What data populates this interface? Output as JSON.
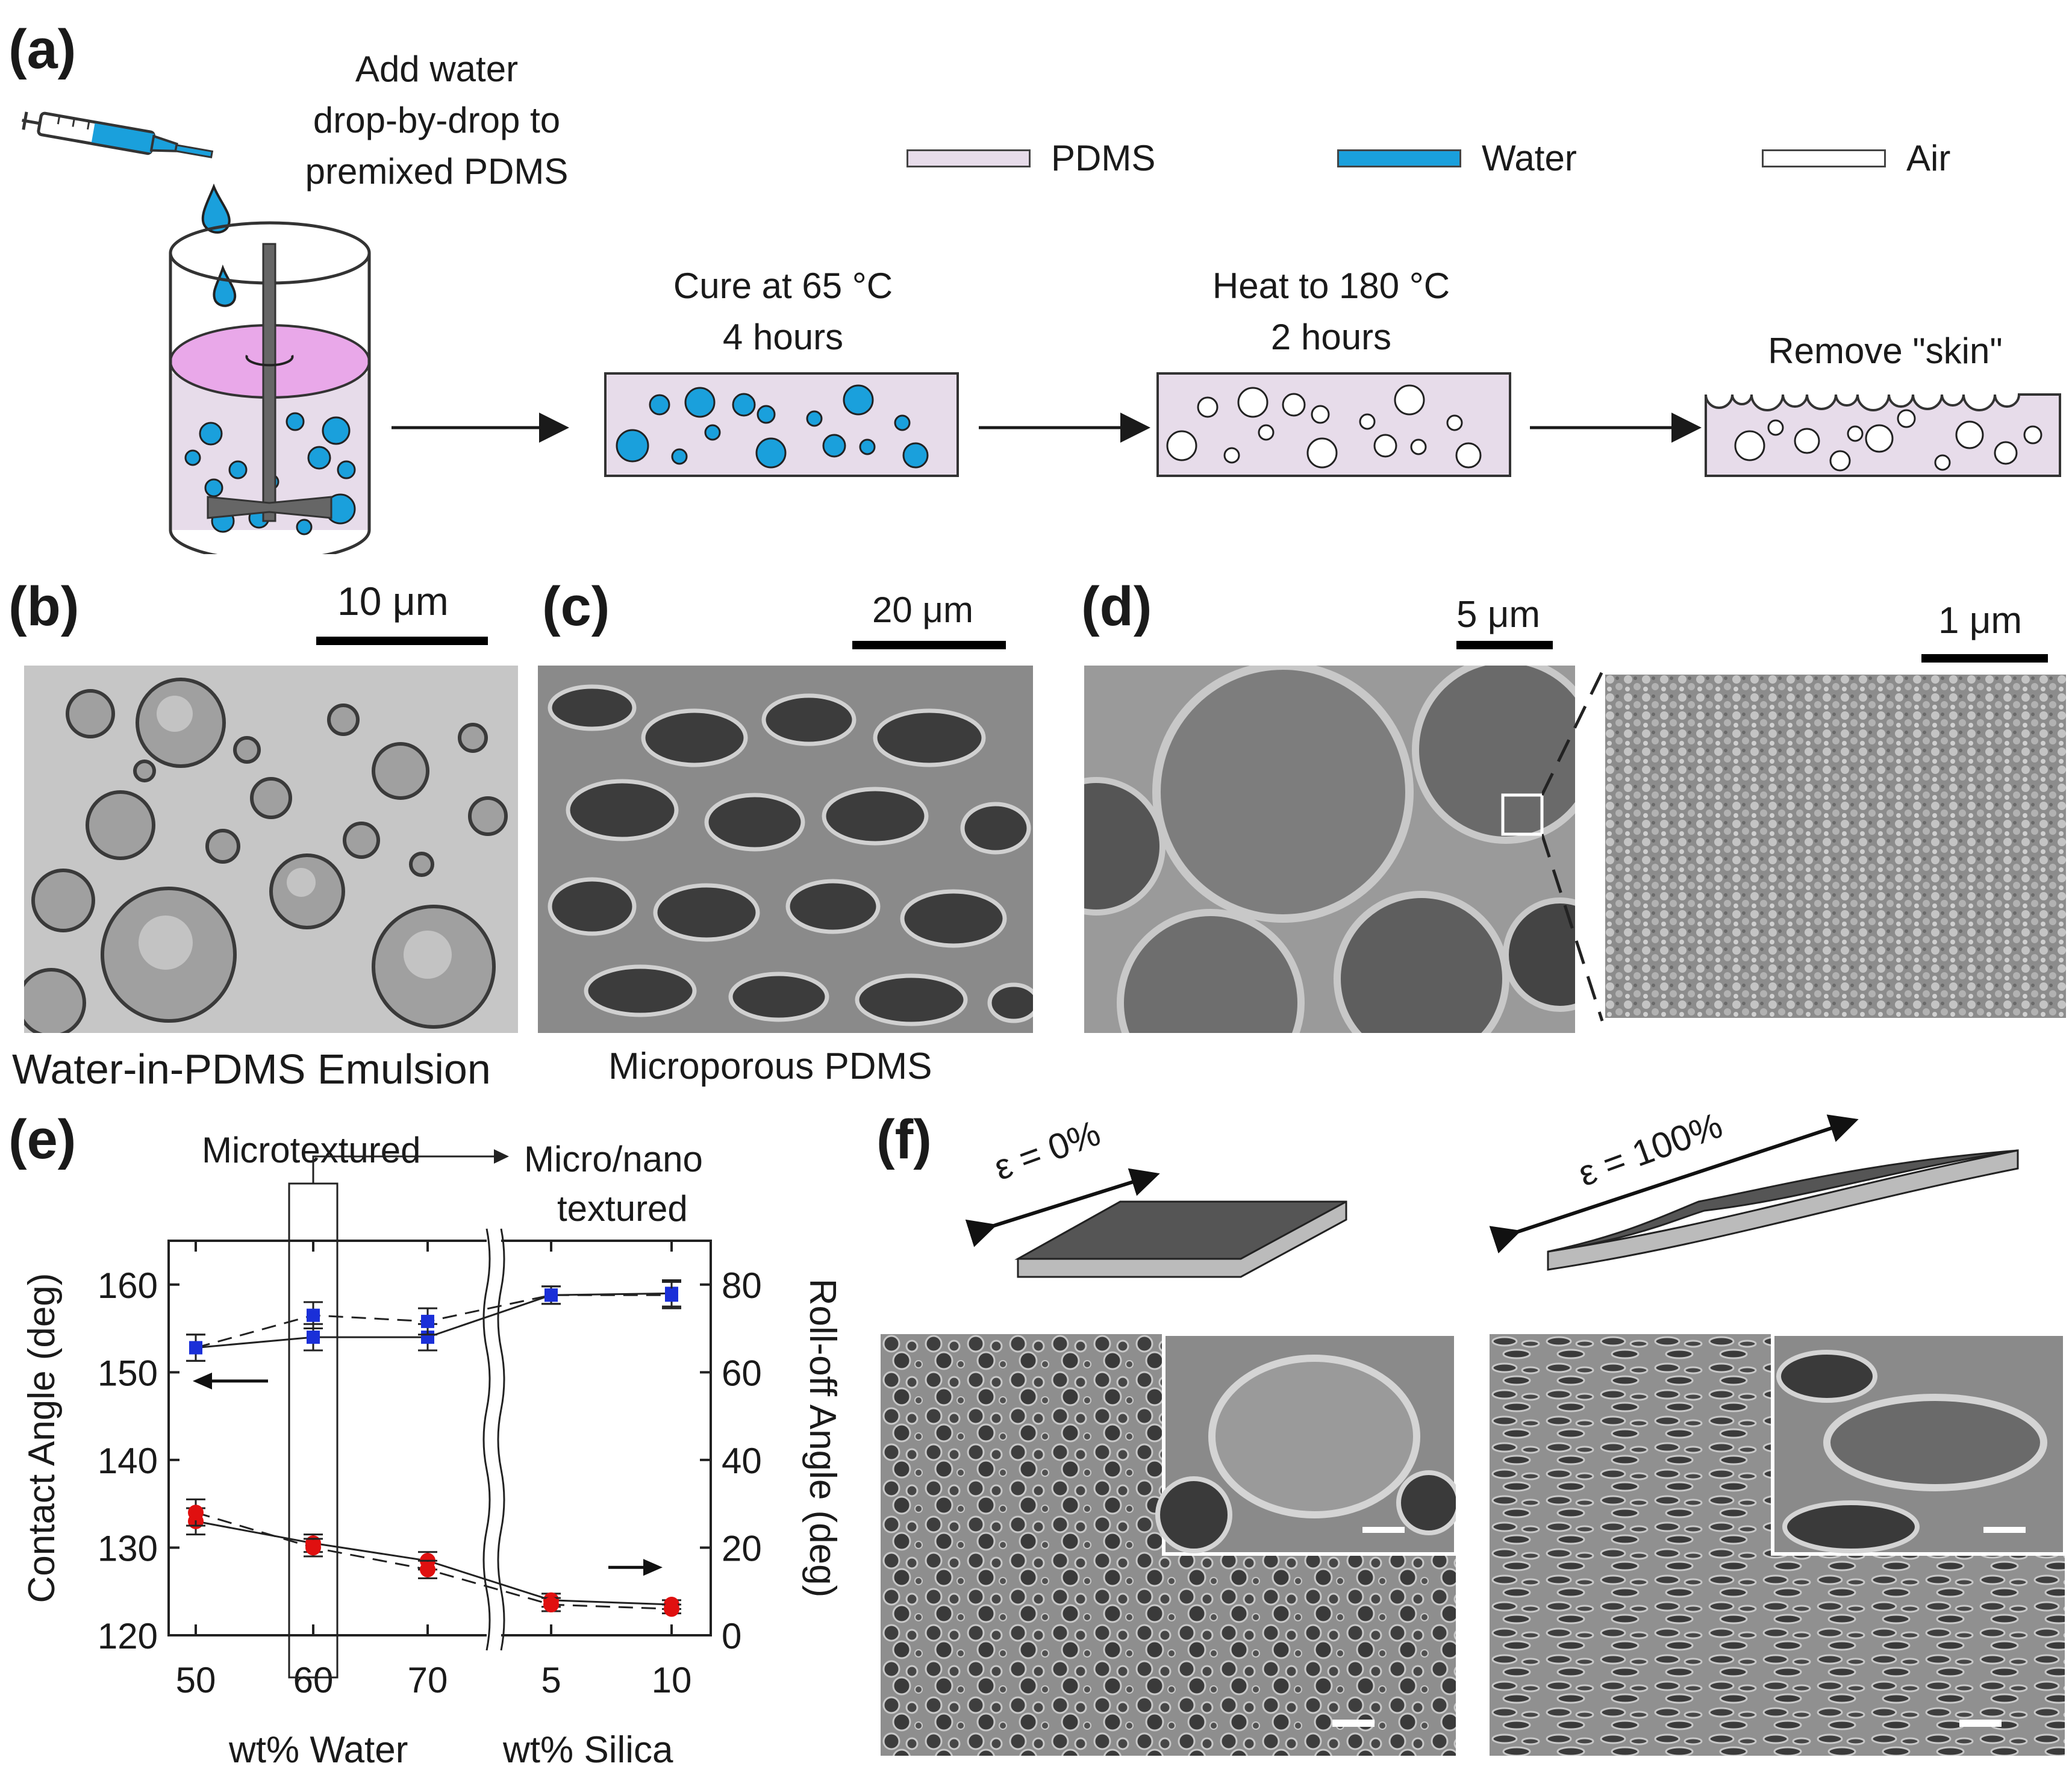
{
  "panels": {
    "a": "(a)",
    "b": "(b)",
    "c": "(c)",
    "d": "(d)",
    "e": "(e)",
    "f": "(f)"
  },
  "schematic": {
    "step1": [
      "Add water",
      "drop-by-drop to",
      "premixed PDMS"
    ],
    "step2": [
      "Cure at 65 °C",
      "4 hours"
    ],
    "step3": [
      "Heat to 180 °C",
      "2 hours"
    ],
    "step4": "Remove \"skin\"",
    "legend": [
      {
        "label": "PDMS",
        "color": "#e7dcea"
      },
      {
        "label": "Water",
        "color": "#1aa0dc"
      },
      {
        "label": "Air",
        "color": "#ffffff"
      }
    ]
  },
  "micrographs": {
    "b_scale": "10 μm",
    "b_caption": "Water-in-PDMS Emulsion",
    "c_scale": "20 μm",
    "c_caption": "Microporous PDMS",
    "d_scale_left": "5 μm",
    "d_scale_right": "1 μm"
  },
  "strain": {
    "left": "ε = 0%",
    "right": "ε = 100%"
  },
  "chart_data": {
    "type": "line",
    "categories": [
      "50",
      "60",
      "70",
      "5",
      "10"
    ],
    "group_labels": [
      "wt% Water",
      "wt% Silica"
    ],
    "annotations": [
      "Microtextured",
      "Micro/nano",
      "textured"
    ],
    "ylabel": "Contact Angle (deg)",
    "y2label": "Roll-off Angle (deg)",
    "ylim": [
      120,
      165
    ],
    "y2lim": [
      0,
      90
    ],
    "yticks": [
      "120",
      "130",
      "140",
      "150",
      "160"
    ],
    "y2ticks": [
      "0",
      "20",
      "40",
      "60",
      "80"
    ],
    "series": [
      {
        "axis": "left",
        "color": "#1a2fd8",
        "style": "solid",
        "values": [
          152.8,
          154.0,
          154.0,
          158.8,
          159.0
        ],
        "err": [
          1.5,
          1.5,
          1.5,
          1.0,
          1.5
        ]
      },
      {
        "axis": "left",
        "color": "#1a2fd8",
        "style": "dashed",
        "values": [
          152.8,
          156.5,
          155.8,
          158.8,
          158.8
        ],
        "err": [
          1.5,
          1.5,
          1.5,
          1.0,
          1.5
        ]
      },
      {
        "axis": "right",
        "color": "#e01010",
        "style": "solid",
        "values": [
          26,
          21,
          17,
          8,
          7
        ],
        "err": [
          3,
          2,
          2,
          1.5,
          1
        ]
      },
      {
        "axis": "right",
        "color": "#e01010",
        "style": "dashed",
        "values": [
          28,
          20,
          15,
          7,
          6
        ],
        "err": [
          3,
          2,
          2,
          1.5,
          1
        ]
      }
    ]
  }
}
